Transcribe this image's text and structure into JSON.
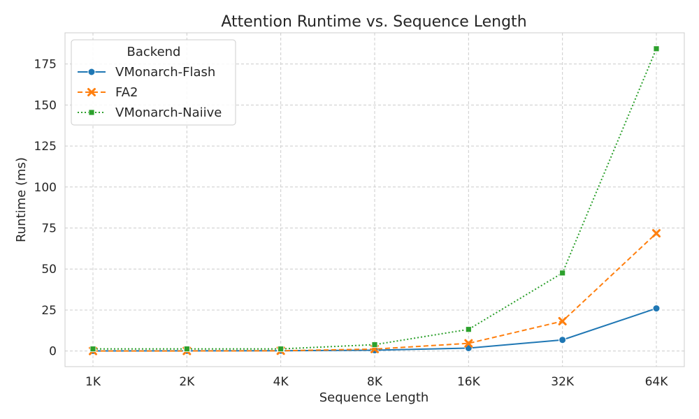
{
  "chart_data": {
    "type": "line",
    "title": "Attention Runtime vs. Sequence Length",
    "xlabel": "Sequence Length",
    "ylabel": "Runtime (ms)",
    "categories": [
      "1K",
      "2K",
      "4K",
      "8K",
      "16K",
      "32K",
      "64K"
    ],
    "yticks": [
      "0",
      "25",
      "50",
      "75",
      "100",
      "125",
      "150",
      "175"
    ],
    "ylim": [
      -9.5,
      194
    ],
    "grid": true,
    "legend": {
      "title": "Backend",
      "placement": "top-left"
    },
    "series": [
      {
        "name": "VMonarch-Flash",
        "color": "#1f77b4",
        "marker": "circle",
        "dash": "solid",
        "values": [
          0.1,
          0.15,
          0.2,
          0.5,
          1.8,
          6.8,
          26.0
        ]
      },
      {
        "name": "FA2",
        "color": "#ff7f0e",
        "marker": "x",
        "dash": "dashed",
        "values": [
          0.0,
          0.05,
          0.15,
          1.2,
          4.7,
          18.2,
          71.8
        ]
      },
      {
        "name": "VMonarch-Naiive",
        "color": "#2ca02c",
        "marker": "square",
        "dash": "dotted",
        "values": [
          1.3,
          1.3,
          1.3,
          3.9,
          13.2,
          47.6,
          184.3
        ]
      }
    ]
  }
}
